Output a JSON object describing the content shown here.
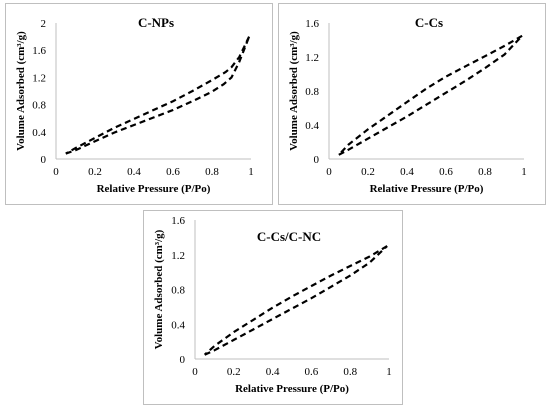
{
  "chart_data": [
    {
      "type": "line",
      "title": "C-NPs",
      "xlabel": "Relative Pressure (P/Po)",
      "ylabel": "Volume Adsorbed (cm³/g)",
      "xlim": [
        0,
        1
      ],
      "ylim": [
        0,
        2
      ],
      "xticks": [
        "0",
        "0.2",
        "0.4",
        "0.6",
        "0.8",
        "1"
      ],
      "yticks": [
        "0",
        "0.4",
        "0.8",
        "1.2",
        "1.6",
        "2"
      ],
      "grid": false,
      "series": [
        {
          "x": [
            0.05,
            0.1,
            0.2,
            0.3,
            0.4,
            0.5,
            0.6,
            0.7,
            0.8,
            0.86,
            0.9,
            0.94,
            0.97,
            0.99
          ],
          "y": [
            0.08,
            0.13,
            0.26,
            0.39,
            0.5,
            0.61,
            0.72,
            0.85,
            0.99,
            1.1,
            1.2,
            1.43,
            1.65,
            1.8
          ]
        },
        {
          "x": [
            0.99,
            0.97,
            0.94,
            0.9,
            0.87,
            0.8,
            0.7,
            0.6,
            0.5,
            0.4,
            0.3,
            0.2,
            0.1,
            0.05
          ],
          "y": [
            1.8,
            1.68,
            1.5,
            1.35,
            1.28,
            1.16,
            1.0,
            0.85,
            0.72,
            0.59,
            0.46,
            0.31,
            0.16,
            0.08
          ]
        }
      ]
    },
    {
      "type": "line",
      "title": "C-Cs",
      "xlabel": "Relative Pressure (P/Po)",
      "ylabel": "Volume Adsorbed (cm³/g)",
      "xlim": [
        0,
        1
      ],
      "ylim": [
        0,
        1.6
      ],
      "xticks": [
        "0",
        "0.2",
        "0.4",
        "0.6",
        "0.8",
        "1"
      ],
      "yticks": [
        "0",
        "0.4",
        "0.8",
        "1.2",
        "1.6"
      ],
      "grid": false,
      "series": [
        {
          "x": [
            0.05,
            0.1,
            0.2,
            0.3,
            0.4,
            0.5,
            0.6,
            0.7,
            0.8,
            0.9,
            0.99
          ],
          "y": [
            0.05,
            0.11,
            0.24,
            0.37,
            0.5,
            0.64,
            0.78,
            0.92,
            1.07,
            1.23,
            1.45
          ]
        },
        {
          "x": [
            0.99,
            0.9,
            0.8,
            0.7,
            0.6,
            0.5,
            0.4,
            0.3,
            0.2,
            0.1,
            0.05
          ],
          "y": [
            1.45,
            1.33,
            1.21,
            1.09,
            0.97,
            0.83,
            0.67,
            0.51,
            0.35,
            0.17,
            0.05
          ]
        }
      ]
    },
    {
      "type": "line",
      "title": "C-Cs/C-NC",
      "xlabel": "Relative Pressure (P/Po)",
      "ylabel": "Volume Adsorbed (cm³/g)",
      "xlim": [
        0,
        1
      ],
      "ylim": [
        0,
        1.6
      ],
      "xticks": [
        "0",
        "0.2",
        "0.4",
        "0.6",
        "0.8",
        "1"
      ],
      "yticks": [
        "0",
        "0.4",
        "0.8",
        "1.2",
        "1.6"
      ],
      "grid": false,
      "series": [
        {
          "x": [
            0.05,
            0.1,
            0.2,
            0.3,
            0.4,
            0.5,
            0.6,
            0.7,
            0.8,
            0.9,
            0.99
          ],
          "y": [
            0.05,
            0.1,
            0.22,
            0.34,
            0.46,
            0.58,
            0.7,
            0.83,
            0.96,
            1.11,
            1.3
          ]
        },
        {
          "x": [
            0.99,
            0.9,
            0.8,
            0.7,
            0.6,
            0.5,
            0.4,
            0.3,
            0.2,
            0.1,
            0.05
          ],
          "y": [
            1.3,
            1.18,
            1.07,
            0.96,
            0.84,
            0.72,
            0.59,
            0.45,
            0.31,
            0.15,
            0.05
          ]
        }
      ]
    }
  ]
}
